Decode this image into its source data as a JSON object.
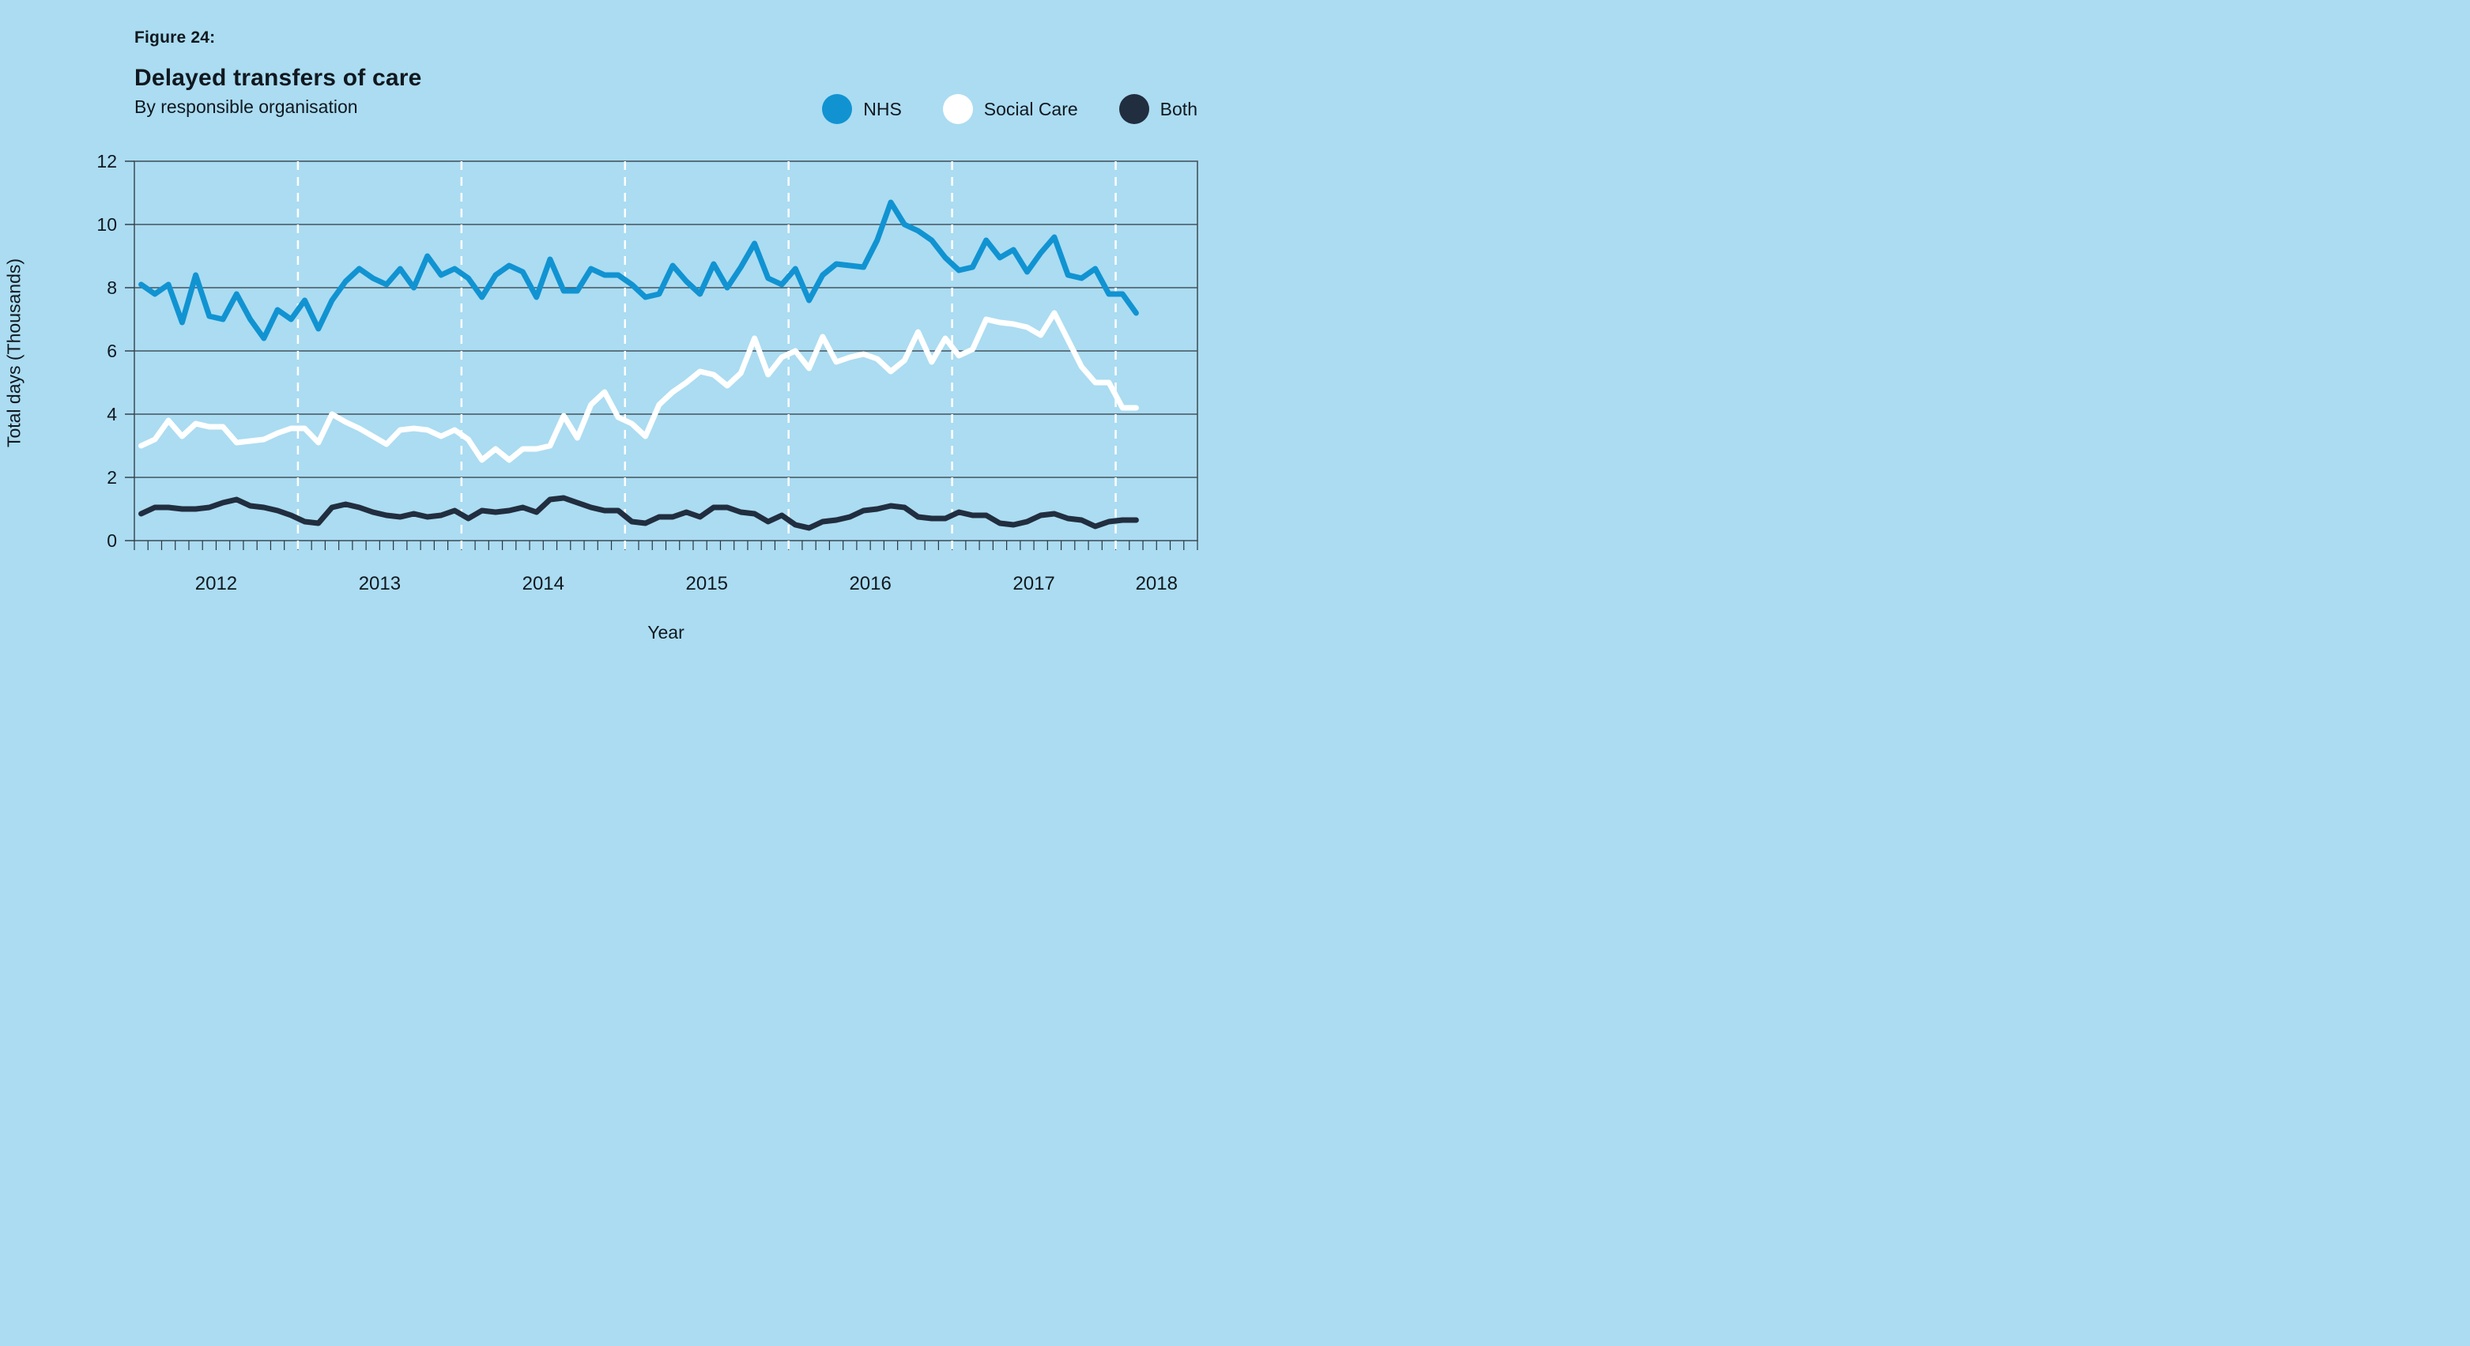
{
  "header": {
    "figure_label": "Figure 24:",
    "title": "Delayed transfers of care",
    "subtitle": "By responsible organisation"
  },
  "legend": {
    "items": [
      {
        "label": "NHS",
        "color": "#1193D2"
      },
      {
        "label": "Social Care",
        "color": "#FFFFFF"
      },
      {
        "label": "Both",
        "color": "#212E40"
      }
    ]
  },
  "colors": {
    "background": "#ABDCF1",
    "gridline": "#44535F",
    "year_divider": "#FFFFFF",
    "tick": "#2A3642",
    "nhs_line": "#1193D2",
    "social_care_line": "#FFFFFF",
    "both_line": "#212E40"
  },
  "chart_data": {
    "type": "line",
    "title": "Delayed transfers of care",
    "subtitle": "By responsible organisation",
    "xlabel": "Year",
    "ylabel": "Total days (Thousands)",
    "ylim": [
      0,
      12
    ],
    "y_ticks": [
      0,
      2,
      4,
      6,
      8,
      10,
      12
    ],
    "grid": "horizontal, plus dashed white vertical lines at each January",
    "legend_position": "top-right",
    "x_axis_span_months": 78,
    "x_start": "2012-01",
    "year_labels": [
      "2012",
      "2013",
      "2014",
      "2015",
      "2016",
      "2017",
      "2018"
    ],
    "x": [
      "2012-01",
      "2012-02",
      "2012-03",
      "2012-04",
      "2012-05",
      "2012-06",
      "2012-07",
      "2012-08",
      "2012-09",
      "2012-10",
      "2012-11",
      "2012-12",
      "2013-01",
      "2013-02",
      "2013-03",
      "2013-04",
      "2013-05",
      "2013-06",
      "2013-07",
      "2013-08",
      "2013-09",
      "2013-10",
      "2013-11",
      "2013-12",
      "2014-01",
      "2014-02",
      "2014-03",
      "2014-04",
      "2014-05",
      "2014-06",
      "2014-07",
      "2014-08",
      "2014-09",
      "2014-10",
      "2014-11",
      "2014-12",
      "2015-01",
      "2015-02",
      "2015-03",
      "2015-04",
      "2015-05",
      "2015-06",
      "2015-07",
      "2015-08",
      "2015-09",
      "2015-10",
      "2015-11",
      "2015-12",
      "2016-01",
      "2016-02",
      "2016-03",
      "2016-04",
      "2016-05",
      "2016-06",
      "2016-07",
      "2016-08",
      "2016-09",
      "2016-10",
      "2016-11",
      "2016-12",
      "2017-01",
      "2017-02",
      "2017-03",
      "2017-04",
      "2017-05",
      "2017-06",
      "2017-07",
      "2017-08",
      "2017-09",
      "2017-10",
      "2017-11",
      "2017-12",
      "2018-01",
      "2018-02"
    ],
    "series": [
      {
        "name": "NHS",
        "color": "#1193D2",
        "values": [
          8.1,
          7.8,
          8.1,
          6.9,
          8.4,
          7.1,
          7.0,
          7.8,
          7.0,
          6.4,
          7.3,
          7.0,
          7.6,
          6.7,
          7.6,
          8.2,
          8.6,
          8.3,
          8.1,
          8.6,
          8.0,
          9.0,
          8.4,
          8.6,
          8.3,
          7.7,
          8.4,
          8.7,
          8.5,
          7.7,
          8.9,
          7.9,
          7.9,
          8.6,
          8.4,
          8.4,
          8.1,
          7.7,
          7.8,
          8.7,
          8.2,
          7.8,
          8.75,
          8.0,
          8.65,
          9.4,
          8.3,
          8.1,
          8.6,
          7.6,
          8.4,
          8.75,
          8.7,
          8.65,
          9.5,
          10.7,
          10.0,
          9.8,
          9.5,
          8.95,
          8.55,
          8.65,
          9.5,
          8.95,
          9.2,
          8.5,
          9.1,
          9.6,
          8.4,
          8.3,
          8.6,
          7.8,
          7.8,
          7.2
        ]
      },
      {
        "name": "Social Care",
        "color": "#FFFFFF",
        "values": [
          3.0,
          3.2,
          3.8,
          3.3,
          3.7,
          3.6,
          3.6,
          3.1,
          3.15,
          3.2,
          3.4,
          3.55,
          3.55,
          3.1,
          4.0,
          3.75,
          3.55,
          3.3,
          3.05,
          3.5,
          3.55,
          3.5,
          3.3,
          3.5,
          3.2,
          2.55,
          2.9,
          2.55,
          2.9,
          2.9,
          3.0,
          3.95,
          3.25,
          4.3,
          4.7,
          3.9,
          3.7,
          3.3,
          4.3,
          4.7,
          5.0,
          5.35,
          5.25,
          4.9,
          5.3,
          6.4,
          5.25,
          5.8,
          6.0,
          5.45,
          6.45,
          5.65,
          5.8,
          5.9,
          5.75,
          5.35,
          5.7,
          6.6,
          5.65,
          6.4,
          5.85,
          6.05,
          7.0,
          6.9,
          6.85,
          6.75,
          6.5,
          7.2,
          6.35,
          5.5,
          5.0,
          5.0,
          4.2,
          4.2
        ]
      },
      {
        "name": "Both",
        "color": "#212E40",
        "values": [
          0.85,
          1.05,
          1.05,
          1.0,
          1.0,
          1.05,
          1.2,
          1.3,
          1.1,
          1.05,
          0.95,
          0.8,
          0.6,
          0.55,
          1.05,
          1.15,
          1.05,
          0.9,
          0.8,
          0.75,
          0.85,
          0.75,
          0.8,
          0.95,
          0.7,
          0.95,
          0.9,
          0.95,
          1.05,
          0.9,
          1.3,
          1.35,
          1.2,
          1.05,
          0.95,
          0.95,
          0.6,
          0.55,
          0.75,
          0.75,
          0.9,
          0.75,
          1.05,
          1.05,
          0.9,
          0.85,
          0.6,
          0.8,
          0.5,
          0.4,
          0.6,
          0.65,
          0.75,
          0.95,
          1.0,
          1.1,
          1.05,
          0.75,
          0.7,
          0.7,
          0.9,
          0.8,
          0.8,
          0.55,
          0.5,
          0.6,
          0.8,
          0.85,
          0.7,
          0.65,
          0.45,
          0.6,
          0.65,
          0.65
        ]
      }
    ]
  }
}
